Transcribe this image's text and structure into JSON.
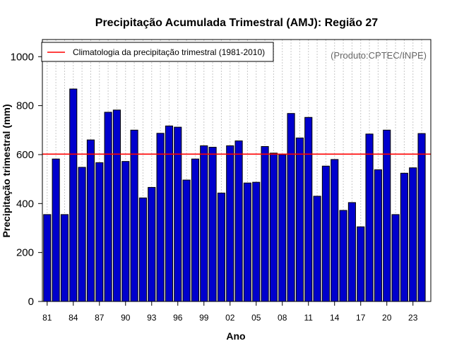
{
  "chart_data": {
    "type": "bar",
    "title": "Precipitação Acumulada Trimestral (AMJ): Região 27",
    "xlabel": "Ano",
    "ylabel": "Precipitação trimestral (mm)",
    "ylim": [
      0,
      1070
    ],
    "yticks": [
      0,
      200,
      400,
      600,
      800,
      1000
    ],
    "credit": "(Produto:CPTEC/INPE)",
    "categories": [
      "1981",
      "1982",
      "1983",
      "1984",
      "1985",
      "1986",
      "1987",
      "1988",
      "1989",
      "1990",
      "1991",
      "1992",
      "1993",
      "1994",
      "1995",
      "1996",
      "1997",
      "1998",
      "1999",
      "2000",
      "2001",
      "2002",
      "2003",
      "2004",
      "2005",
      "2006",
      "2007",
      "2008",
      "2009",
      "2010",
      "2011",
      "2012",
      "2013",
      "2014",
      "2015",
      "2016",
      "2017",
      "2018",
      "2019",
      "2020",
      "2021",
      "2022",
      "2023",
      "2024"
    ],
    "xtick_labels": [
      "81",
      "84",
      "87",
      "90",
      "93",
      "96",
      "99",
      "02",
      "05",
      "08",
      "11",
      "14",
      "17",
      "20",
      "23"
    ],
    "xtick_every": 3,
    "series": [
      {
        "name": "Precipitação trimestral (AMJ)",
        "color": "#0000cd",
        "values": [
          355,
          582,
          355,
          868,
          548,
          660,
          567,
          773,
          782,
          572,
          700,
          423,
          466,
          687,
          717,
          712,
          496,
          582,
          636,
          630,
          443,
          636,
          656,
          484,
          487,
          633,
          606,
          600,
          768,
          668,
          752,
          430,
          553,
          580,
          372,
          404,
          305,
          684,
          538,
          700,
          355,
          524,
          546,
          686
        ]
      }
    ],
    "reference_line": {
      "label": "Climatologia da precipitação trimestral (1981-2010)",
      "value": 602,
      "color": "#ff0000"
    },
    "grid": "vertical-dotted",
    "legend_position": "top-left"
  }
}
